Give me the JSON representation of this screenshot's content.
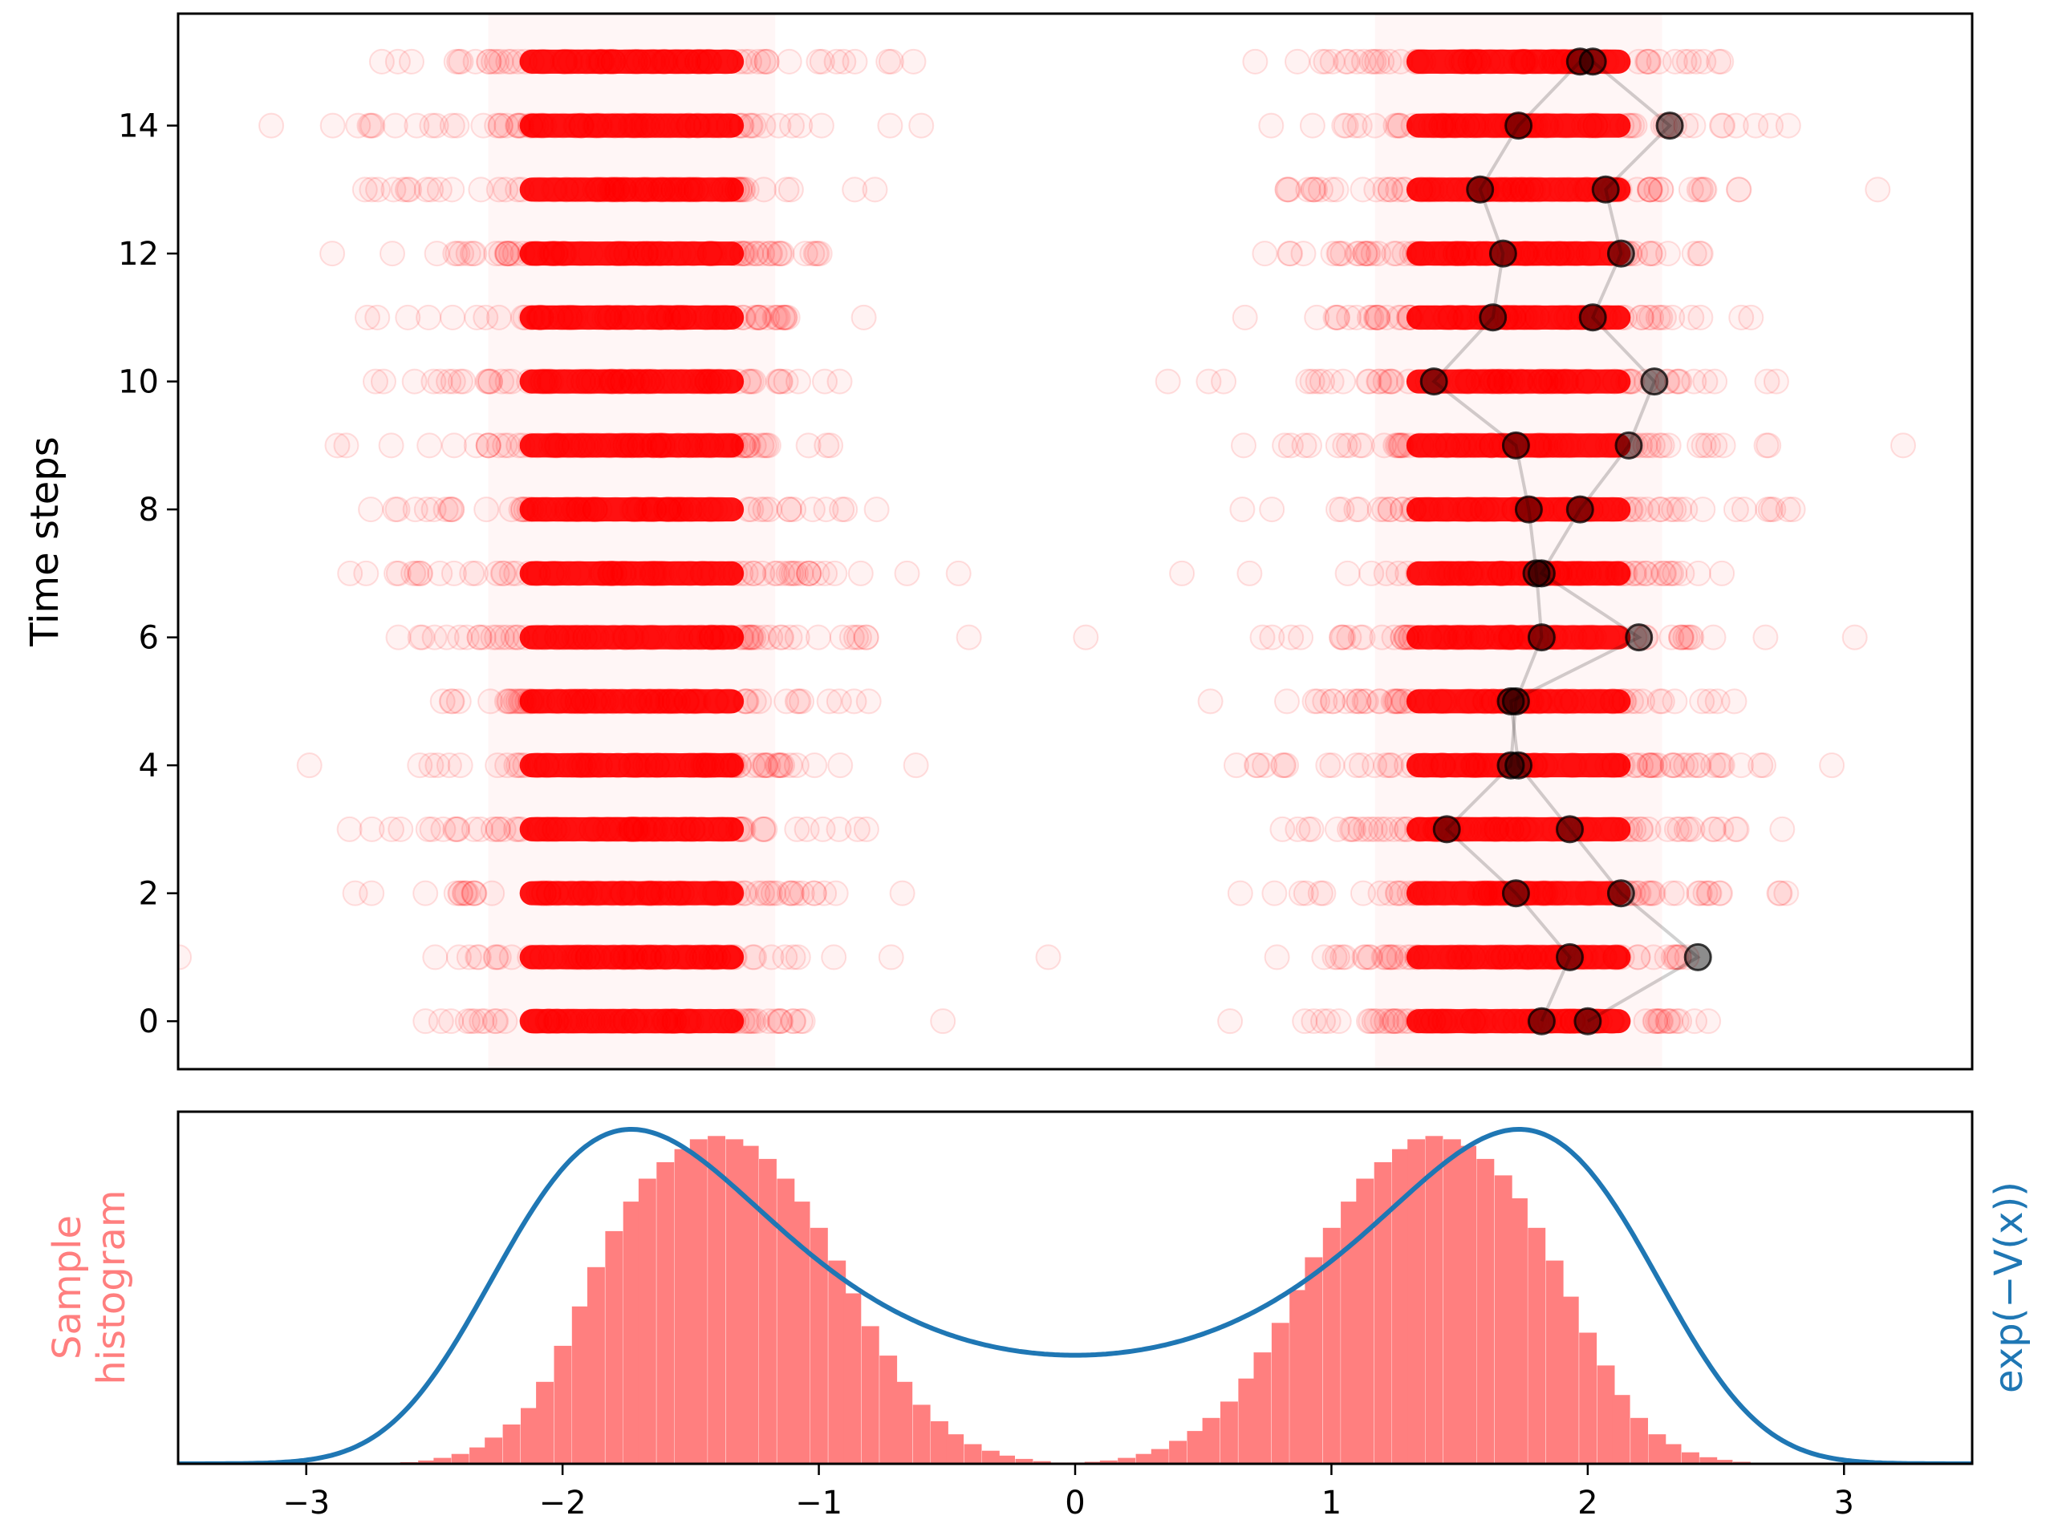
{
  "colors": {
    "samples": "#ff0000",
    "trajectory": "#000000",
    "histogram": "#ff7f7f",
    "density": "#1f77b4"
  },
  "chart_data": [
    {
      "type": "scatter",
      "title": "",
      "xlabel": "",
      "ylabel": "Time steps",
      "xlim": [
        -3.5,
        3.5
      ],
      "ylim": [
        -0.75,
        15.75
      ],
      "yticks": [
        0,
        2,
        4,
        6,
        8,
        10,
        12,
        14
      ],
      "xticks_visible": false,
      "time_steps": [
        0,
        1,
        2,
        3,
        4,
        5,
        6,
        7,
        8,
        9,
        10,
        11,
        12,
        13,
        14,
        15
      ],
      "sample_clusters": [
        {
          "name": "",
          "center": -1.73,
          "spread": 0.35
        },
        {
          "name": "",
          "center": 1.73,
          "spread": 0.35
        }
      ],
      "highlighted_trajectories": [
        {
          "name": "",
          "x": [
            1.82,
            1.93,
            1.72,
            1.45,
            1.7,
            1.72,
            1.82,
            1.8,
            1.77,
            1.72,
            1.4,
            1.63,
            1.67,
            1.58,
            1.73,
            1.97
          ]
        },
        {
          "name": "",
          "x": [
            2.0,
            2.43,
            2.13,
            1.93,
            1.73,
            1.7,
            2.2,
            1.82,
            1.97,
            2.16,
            2.26,
            2.02,
            2.13,
            2.07,
            2.32,
            2.02
          ]
        }
      ]
    },
    {
      "type": "bar",
      "title": "",
      "xlabel": "",
      "ylabel": "Sample\nhistogram",
      "ylabel_right": "exp(−V(x))",
      "xlim": [
        -3.5,
        3.5
      ],
      "xticks": [
        -3,
        -2,
        -1,
        0,
        1,
        2,
        3
      ],
      "xtick_labels": [
        "−3",
        "−2",
        "−1",
        "0",
        "1",
        "2",
        "3"
      ],
      "yticks_visible": false,
      "potential": "V(x) = (x^2 - 3)^2 / 8",
      "density_peak": 1.0,
      "density_at_zero": 0.325,
      "histogram": {
        "bin_width": 0.0667,
        "bin_centers": [
          -2.6,
          -2.53,
          -2.47,
          -2.4,
          -2.33,
          -2.27,
          -2.2,
          -2.13,
          -2.07,
          -2.0,
          -1.93,
          -1.87,
          -1.8,
          -1.73,
          -1.67,
          -1.6,
          -1.53,
          -1.47,
          -1.4,
          -1.33,
          -1.27,
          -1.2,
          -1.13,
          -1.07,
          -1.0,
          -0.93,
          -0.87,
          -0.8,
          -0.73,
          -0.67,
          -0.6,
          -0.53,
          -0.47,
          -0.4,
          -0.33,
          -0.27,
          -0.2,
          -0.13,
          -0.07,
          0.0,
          0.07,
          0.13,
          0.2,
          0.27,
          0.33,
          0.4,
          0.47,
          0.53,
          0.6,
          0.67,
          0.73,
          0.8,
          0.87,
          0.93,
          1.0,
          1.07,
          1.13,
          1.2,
          1.27,
          1.33,
          1.4,
          1.47,
          1.53,
          1.6,
          1.67,
          1.73,
          1.8,
          1.87,
          1.93,
          2.0,
          2.07,
          2.13,
          2.2,
          2.27,
          2.33,
          2.4,
          2.47,
          2.53,
          2.6
        ],
        "values": [
          0.005,
          0.01,
          0.018,
          0.03,
          0.05,
          0.08,
          0.12,
          0.17,
          0.25,
          0.36,
          0.48,
          0.6,
          0.71,
          0.8,
          0.87,
          0.92,
          0.96,
          0.99,
          1.0,
          0.99,
          0.97,
          0.93,
          0.87,
          0.8,
          0.72,
          0.62,
          0.52,
          0.42,
          0.33,
          0.25,
          0.18,
          0.13,
          0.09,
          0.06,
          0.04,
          0.025,
          0.015,
          0.008,
          0.004,
          0.004,
          0.006,
          0.01,
          0.018,
          0.03,
          0.045,
          0.07,
          0.1,
          0.14,
          0.19,
          0.26,
          0.34,
          0.43,
          0.53,
          0.63,
          0.72,
          0.8,
          0.87,
          0.92,
          0.96,
          0.99,
          1.0,
          0.99,
          0.97,
          0.93,
          0.88,
          0.81,
          0.72,
          0.62,
          0.51,
          0.4,
          0.3,
          0.21,
          0.14,
          0.09,
          0.06,
          0.035,
          0.02,
          0.012,
          0.006
        ]
      }
    }
  ]
}
